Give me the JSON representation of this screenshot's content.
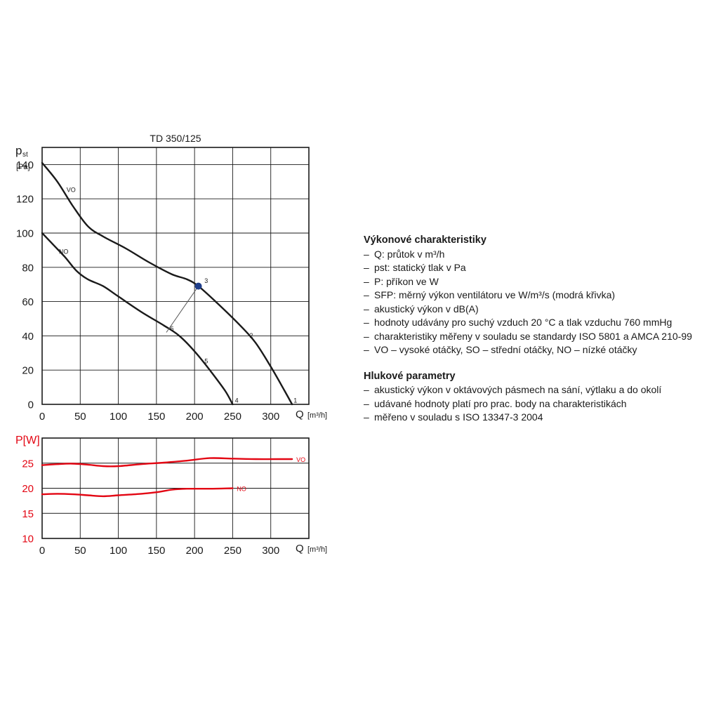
{
  "chart_data": [
    {
      "type": "line",
      "title": "TD 350/125",
      "ylabel_main": "p",
      "ylabel_sub": "st",
      "yunit": "[Pa]",
      "xlabel": "Q",
      "xunit": "[m³/h]",
      "xlim": [
        0,
        350
      ],
      "ylim": [
        0,
        150
      ],
      "xticks": [
        0,
        50,
        100,
        150,
        200,
        250,
        300
      ],
      "yticks": [
        0,
        20,
        40,
        60,
        80,
        100,
        120,
        140
      ],
      "grid": true,
      "series": [
        {
          "name": "VO",
          "color": "#1a1a1a",
          "x": [
            0,
            20,
            40,
            60,
            80,
            110,
            140,
            170,
            190,
            205,
            230,
            260,
            280,
            300,
            318,
            328
          ],
          "y": [
            141,
            130,
            116,
            104,
            98,
            91,
            83,
            76,
            73,
            69,
            59,
            46,
            36,
            22,
            8,
            0
          ]
        },
        {
          "name": "NO",
          "color": "#1a1a1a",
          "x": [
            0,
            15,
            30,
            45,
            60,
            80,
            100,
            130,
            160,
            180,
            200,
            220,
            240,
            250
          ],
          "y": [
            100,
            93,
            86,
            78,
            73,
            69,
            63,
            54,
            46,
            40,
            31,
            20,
            8,
            0
          ]
        }
      ],
      "markers": [
        {
          "x": 205,
          "y": 69,
          "color": "#1f3e8a"
        }
      ],
      "system_line": {
        "x": [
          163,
          205
        ],
        "y": [
          42,
          69
        ]
      },
      "point_labels": [
        {
          "text": "1",
          "x": 330,
          "y": 1
        },
        {
          "text": "2",
          "x": 272,
          "y": 39
        },
        {
          "text": "3",
          "x": 213,
          "y": 71
        },
        {
          "text": "4",
          "x": 253,
          "y": 1
        },
        {
          "text": "5",
          "x": 213,
          "y": 24
        },
        {
          "text": "6",
          "x": 168,
          "y": 43
        }
      ],
      "curve_labels": [
        {
          "text": "VO",
          "x": 32,
          "y": 124
        },
        {
          "text": "NO",
          "x": 22,
          "y": 88
        }
      ]
    },
    {
      "type": "line",
      "ylabel": "P[W]",
      "xlabel": "Q",
      "xunit": "[m³/h]",
      "xlim": [
        0,
        350
      ],
      "ylim": [
        10,
        30
      ],
      "xticks": [
        0,
        50,
        100,
        150,
        200,
        250,
        300
      ],
      "yticks": [
        10,
        15,
        20,
        25
      ],
      "grid": true,
      "series": [
        {
          "name": "VO",
          "color": "#e30613",
          "x": [
            0,
            20,
            40,
            60,
            80,
            100,
            130,
            160,
            190,
            220,
            250,
            280,
            310,
            328
          ],
          "y": [
            24.6,
            24.8,
            24.9,
            24.7,
            24.4,
            24.4,
            24.8,
            25.1,
            25.5,
            26.0,
            25.9,
            25.8,
            25.8,
            25.8
          ]
        },
        {
          "name": "NO",
          "color": "#e30613",
          "x": [
            0,
            20,
            40,
            60,
            80,
            100,
            130,
            150,
            170,
            190,
            220,
            250
          ],
          "y": [
            18.8,
            18.9,
            18.8,
            18.6,
            18.4,
            18.6,
            18.9,
            19.2,
            19.7,
            19.9,
            19.9,
            20.0
          ]
        }
      ]
    }
  ],
  "panel": {
    "performance_title": "Výkonové charakteristiky",
    "performance_items": [
      "Q: průtok v m³/h",
      "pst: statický tlak v Pa",
      "P: příkon ve W",
      "SFP: měrný výkon ventilátoru ve W/m³/s (modrá křivka)",
      "akustický výkon v dB(A)",
      "hodnoty udávány pro suchý vzduch 20 °C a tlak vzduchu 760 mmHg",
      "charakteristiky měřeny v souladu se standardy ISO 5801 a AMCA 210-99",
      "VO – vysoké otáčky, SO – střední otáčky, NO – nízké otáčky"
    ],
    "noise_title": "Hlukové parametry",
    "noise_items": [
      "akustický výkon v oktávových pásmech na sání, výtlaku a do okolí",
      "udávané hodnoty platí pro prac. body na charakteristikách",
      "měřeno v souladu s ISO 13347-3 2004"
    ]
  }
}
